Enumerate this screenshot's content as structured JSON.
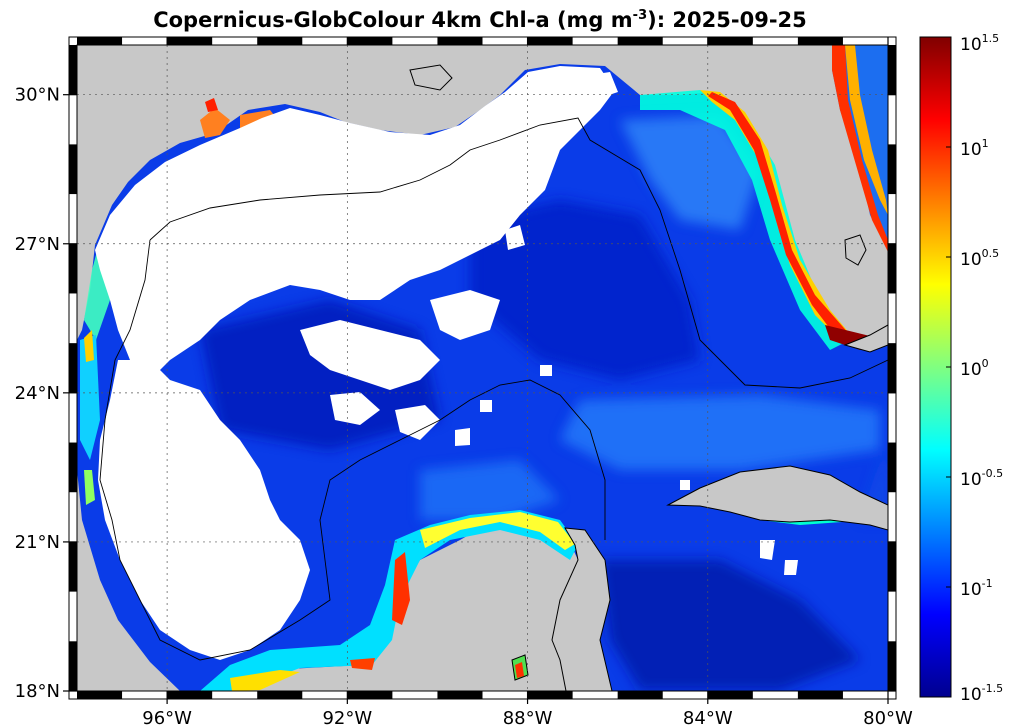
{
  "title": {
    "prefix": "Copernicus-GlobColour 4km Chl-a (mg m",
    "sup": "-3",
    "suffix": "): 2025-09-25"
  },
  "map": {
    "lon_range": [
      -98,
      -80
    ],
    "lat_range": [
      18,
      31
    ],
    "grid": true,
    "land_color": "#c8c8c8",
    "nodata_color": "#ffffff",
    "lon_ticks": [
      {
        "value": -96,
        "label": "96°W"
      },
      {
        "value": -92,
        "label": "92°W"
      },
      {
        "value": -88,
        "label": "88°W"
      },
      {
        "value": -84,
        "label": "84°W"
      },
      {
        "value": -80,
        "label": "80°W"
      }
    ],
    "lat_ticks": [
      {
        "value": 30,
        "label": "30°N"
      },
      {
        "value": 27,
        "label": "27°N"
      },
      {
        "value": 24,
        "label": "24°N"
      },
      {
        "value": 21,
        "label": "21°N"
      },
      {
        "value": 18,
        "label": "18°N"
      }
    ]
  },
  "colorbar": {
    "scale": "log",
    "min_exp": -1.5,
    "max_exp": 1.5,
    "ticks": [
      {
        "base": "10",
        "exp": "1.5"
      },
      {
        "base": "10",
        "exp": "1"
      },
      {
        "base": "10",
        "exp": "0.5"
      },
      {
        "base": "10",
        "exp": "0"
      },
      {
        "base": "10",
        "exp": "-0.5"
      },
      {
        "base": "10",
        "exp": "-1"
      },
      {
        "base": "10",
        "exp": "-1.5"
      }
    ],
    "colors": [
      "#00008f",
      "#0000ff",
      "#0080ff",
      "#00ffff",
      "#80ff80",
      "#ffff00",
      "#ff8000",
      "#ff0000",
      "#800000"
    ]
  }
}
